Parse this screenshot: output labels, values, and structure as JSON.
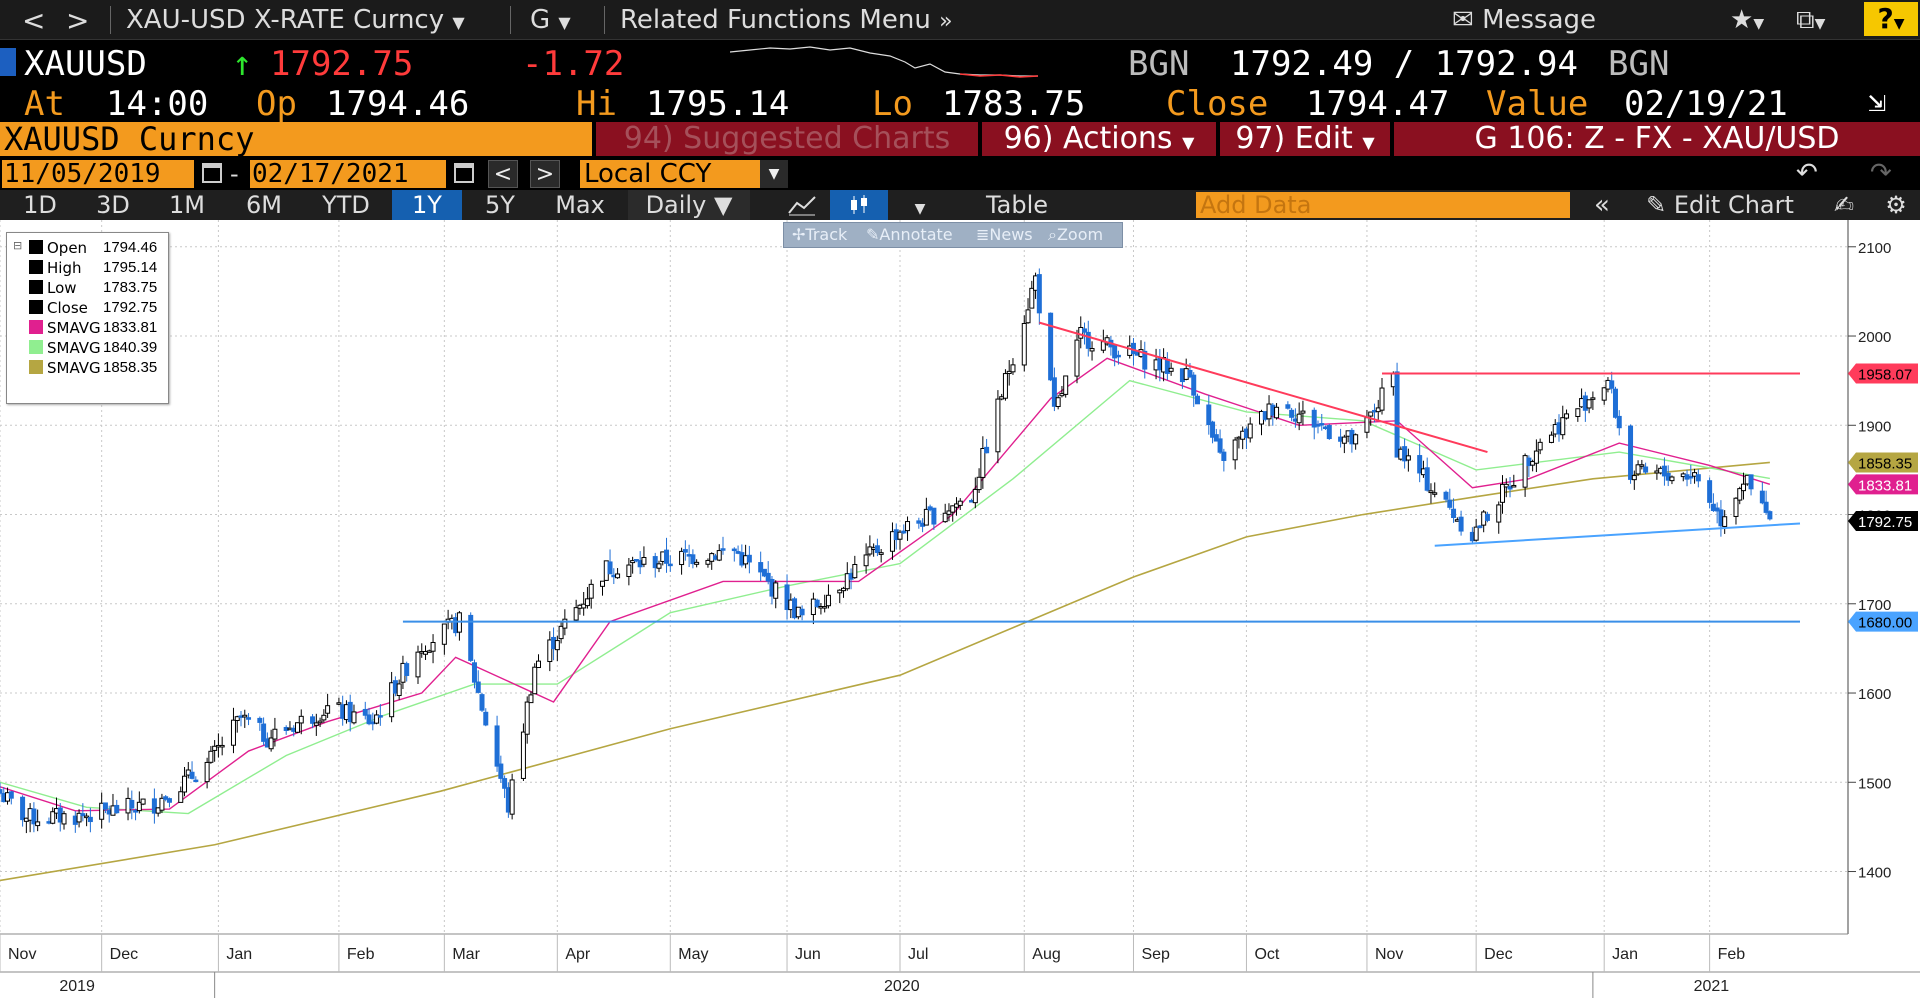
{
  "title_bar": {
    "back": "<",
    "forward": ">",
    "security_menu": "XAU-USD X-RATE Curncy",
    "function_menu": "G",
    "related_menu": "Related Functions Menu",
    "message": "Message",
    "help": "?"
  },
  "ticker": {
    "symbol": "XAUUSD",
    "last": "1792.75",
    "change": "-1.72",
    "src1": "BGN",
    "bid_ask": "1792.49 / 1792.94",
    "src2": "BGN"
  },
  "summary": {
    "at_label": "At",
    "at": "14:00",
    "op_label": "Op",
    "op": "1794.46",
    "hi_label": "Hi",
    "hi": "1795.14",
    "lo_label": "Lo",
    "lo": "1783.75",
    "close_label": "Close",
    "close": "1794.47",
    "value_label": "Value",
    "value": "02/19/21"
  },
  "function_bar": {
    "security": "XAUUSD Curncy",
    "suggested": "94) Suggested Charts",
    "actions": "96) Actions",
    "edit": "97) Edit",
    "chart_id": "G 106: Z - FX - XAU/USD"
  },
  "date_range": {
    "start": "11/05/2019",
    "end": "02/17/2021",
    "currency": "Local CCY"
  },
  "toolbar": {
    "periods": [
      "1D",
      "3D",
      "1M",
      "6M",
      "YTD",
      "1Y",
      "5Y",
      "Max"
    ],
    "selected_period": "1Y",
    "frequency": "Daily",
    "table": "Table",
    "add_data_placeholder": "Add Data",
    "edit_chart": "Edit Chart"
  },
  "chart_tools": [
    "Track",
    "Annotate",
    "News",
    "Zoom"
  ],
  "legend": [
    {
      "name": "Open",
      "value": "1794.46",
      "color": "#000000"
    },
    {
      "name": "High",
      "value": "1795.14",
      "color": "#000000"
    },
    {
      "name": "Low",
      "value": "1783.75",
      "color": "#000000"
    },
    {
      "name": "Close",
      "value": "1792.75",
      "color": "#000000"
    },
    {
      "name": "SMAVG",
      "value": "1833.81",
      "color": "#e0208f"
    },
    {
      "name": "SMAVG",
      "value": "1840.39",
      "color": "#90ee90"
    },
    {
      "name": "SMAVG",
      "value": "1858.35",
      "color": "#b5a642"
    }
  ],
  "colors": {
    "accent_orange": "#f39a1e",
    "down": "#1f6fd6",
    "up": "#000000",
    "last_price_red": "#ff3b3b",
    "sma_short": "#e0208f",
    "sma_mid": "#90ee90",
    "sma_long": "#b5a642"
  },
  "chart_data": {
    "type": "candlestick",
    "title": "",
    "ylim": [
      1330,
      2130
    ],
    "yticks": [
      1400,
      1500,
      1600,
      1700,
      1800,
      1900,
      2000,
      2100
    ],
    "months": [
      {
        "label": "Nov",
        "date": "2019-11-05"
      },
      {
        "label": "Dec",
        "date": "2019-12-02"
      },
      {
        "label": "Jan",
        "date": "2020-01-02"
      },
      {
        "label": "Feb",
        "date": "2020-02-03"
      },
      {
        "label": "Mar",
        "date": "2020-03-02"
      },
      {
        "label": "Apr",
        "date": "2020-04-01"
      },
      {
        "label": "May",
        "date": "2020-05-01"
      },
      {
        "label": "Jun",
        "date": "2020-06-01"
      },
      {
        "label": "Jul",
        "date": "2020-07-01"
      },
      {
        "label": "Aug",
        "date": "2020-08-03"
      },
      {
        "label": "Sep",
        "date": "2020-09-01"
      },
      {
        "label": "Oct",
        "date": "2020-10-01"
      },
      {
        "label": "Nov",
        "date": "2020-11-02"
      },
      {
        "label": "Dec",
        "date": "2020-12-01"
      },
      {
        "label": "Jan",
        "date": "2021-01-04"
      },
      {
        "label": "Feb",
        "date": "2021-02-01"
      }
    ],
    "years": [
      {
        "label": "2019",
        "date": "2019-11-25"
      },
      {
        "label": "2020",
        "date": "2020-07-01"
      },
      {
        "label": "2021",
        "date": "2021-02-01"
      }
    ],
    "price_path": [
      {
        "date": "2019-11-05",
        "price": 1488
      },
      {
        "date": "2019-11-12",
        "price": 1460
      },
      {
        "date": "2019-11-26",
        "price": 1462
      },
      {
        "date": "2019-12-16",
        "price": 1476
      },
      {
        "date": "2019-12-30",
        "price": 1520
      },
      {
        "date": "2020-01-08",
        "price": 1572
      },
      {
        "date": "2020-01-15",
        "price": 1550
      },
      {
        "date": "2020-01-31",
        "price": 1583
      },
      {
        "date": "2020-02-12",
        "price": 1568
      },
      {
        "date": "2020-02-24",
        "price": 1650
      },
      {
        "date": "2020-03-06",
        "price": 1680
      },
      {
        "date": "2020-03-19",
        "price": 1472
      },
      {
        "date": "2020-03-26",
        "price": 1630
      },
      {
        "date": "2020-04-14",
        "price": 1740
      },
      {
        "date": "2020-05-18",
        "price": 1760
      },
      {
        "date": "2020-06-05",
        "price": 1685
      },
      {
        "date": "2020-06-30",
        "price": 1780
      },
      {
        "date": "2020-07-20",
        "price": 1820
      },
      {
        "date": "2020-08-06",
        "price": 2065
      },
      {
        "date": "2020-08-11",
        "price": 1912
      },
      {
        "date": "2020-08-18",
        "price": 2000
      },
      {
        "date": "2020-09-16",
        "price": 1955
      },
      {
        "date": "2020-09-24",
        "price": 1862
      },
      {
        "date": "2020-10-09",
        "price": 1925
      },
      {
        "date": "2020-10-30",
        "price": 1880
      },
      {
        "date": "2020-11-09",
        "price": 1955
      },
      {
        "date": "2020-11-10",
        "price": 1875
      },
      {
        "date": "2020-11-30",
        "price": 1777
      },
      {
        "date": "2020-12-18",
        "price": 1882
      },
      {
        "date": "2021-01-05",
        "price": 1950
      },
      {
        "date": "2021-01-11",
        "price": 1845
      },
      {
        "date": "2021-01-28",
        "price": 1845
      },
      {
        "date": "2021-02-04",
        "price": 1795
      },
      {
        "date": "2021-02-10",
        "price": 1840
      },
      {
        "date": "2021-02-17",
        "price": 1792.75
      }
    ],
    "sma_short_path": [
      {
        "date": "2019-11-05",
        "price": 1495
      },
      {
        "date": "2019-11-25",
        "price": 1468
      },
      {
        "date": "2019-12-20",
        "price": 1470
      },
      {
        "date": "2020-01-10",
        "price": 1535
      },
      {
        "date": "2020-01-31",
        "price": 1568
      },
      {
        "date": "2020-02-25",
        "price": 1600
      },
      {
        "date": "2020-03-05",
        "price": 1640
      },
      {
        "date": "2020-03-31",
        "price": 1590
      },
      {
        "date": "2020-04-15",
        "price": 1680
      },
      {
        "date": "2020-05-15",
        "price": 1725
      },
      {
        "date": "2020-06-20",
        "price": 1725
      },
      {
        "date": "2020-07-15",
        "price": 1800
      },
      {
        "date": "2020-08-10",
        "price": 1930
      },
      {
        "date": "2020-08-25",
        "price": 1975
      },
      {
        "date": "2020-09-20",
        "price": 1935
      },
      {
        "date": "2020-10-15",
        "price": 1900
      },
      {
        "date": "2020-11-10",
        "price": 1905
      },
      {
        "date": "2020-11-30",
        "price": 1830
      },
      {
        "date": "2020-12-15",
        "price": 1840
      },
      {
        "date": "2021-01-08",
        "price": 1880
      },
      {
        "date": "2021-02-01",
        "price": 1855
      },
      {
        "date": "2021-02-17",
        "price": 1833.81
      }
    ],
    "sma_mid_path": [
      {
        "date": "2019-11-05",
        "price": 1500
      },
      {
        "date": "2019-11-28",
        "price": 1472
      },
      {
        "date": "2019-12-25",
        "price": 1465
      },
      {
        "date": "2020-01-20",
        "price": 1530
      },
      {
        "date": "2020-02-15",
        "price": 1575
      },
      {
        "date": "2020-03-10",
        "price": 1610
      },
      {
        "date": "2020-04-01",
        "price": 1610
      },
      {
        "date": "2020-05-01",
        "price": 1690
      },
      {
        "date": "2020-06-01",
        "price": 1720
      },
      {
        "date": "2020-07-01",
        "price": 1745
      },
      {
        "date": "2020-07-31",
        "price": 1840
      },
      {
        "date": "2020-08-31",
        "price": 1950
      },
      {
        "date": "2020-10-01",
        "price": 1915
      },
      {
        "date": "2020-11-01",
        "price": 1905
      },
      {
        "date": "2020-12-01",
        "price": 1850
      },
      {
        "date": "2021-01-08",
        "price": 1870
      },
      {
        "date": "2021-02-17",
        "price": 1840.39
      }
    ],
    "sma_long_path": [
      {
        "date": "2019-11-05",
        "price": 1390
      },
      {
        "date": "2020-01-01",
        "price": 1430
      },
      {
        "date": "2020-03-01",
        "price": 1490
      },
      {
        "date": "2020-05-01",
        "price": 1560
      },
      {
        "date": "2020-07-01",
        "price": 1620
      },
      {
        "date": "2020-08-01",
        "price": 1675
      },
      {
        "date": "2020-09-01",
        "price": 1730
      },
      {
        "date": "2020-10-01",
        "price": 1775
      },
      {
        "date": "2020-11-01",
        "price": 1800
      },
      {
        "date": "2020-12-01",
        "price": 1820
      },
      {
        "date": "2021-01-01",
        "price": 1840
      },
      {
        "date": "2021-02-17",
        "price": 1858.35
      }
    ],
    "trendlines": [
      {
        "from": {
          "date": "2020-08-07",
          "price": 2015
        },
        "to": {
          "date": "2020-12-04",
          "price": 1870
        },
        "color": "#ff3b5b"
      },
      {
        "from": {
          "date": "2020-11-06",
          "price": 1958.07
        },
        "to": {
          "date": "2021-02-25",
          "price": 1958.07
        },
        "color": "#ff3b5b"
      },
      {
        "from": {
          "date": "2020-11-20",
          "price": 1765
        },
        "to": {
          "date": "2021-02-25",
          "price": 1790
        },
        "color": "#4aa3ff"
      },
      {
        "from": {
          "date": "2020-02-20",
          "price": 1680
        },
        "to": {
          "date": "2021-02-25",
          "price": 1680
        },
        "color": "#3a8fe8"
      }
    ],
    "right_labels": [
      {
        "value": 1958.07,
        "text": "1958.07",
        "bg": "#ff3b5b",
        "fg": "#000000"
      },
      {
        "value": 1858.35,
        "text": "1858.35",
        "bg": "#b5a642",
        "fg": "#000000"
      },
      {
        "value": 1833.81,
        "text": "1833.81",
        "bg": "#e0208f",
        "fg": "#ffffff"
      },
      {
        "value": 1792.75,
        "text": "1792.75",
        "bg": "#000000",
        "fg": "#ffffff"
      },
      {
        "value": 1680,
        "text": "1680.00",
        "bg": "#4aa3ff",
        "fg": "#000000"
      }
    ]
  }
}
